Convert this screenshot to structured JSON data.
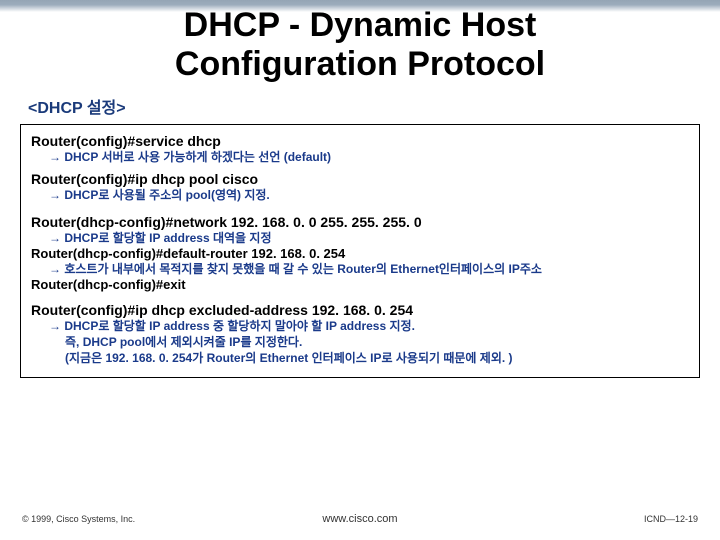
{
  "title_line1": "DHCP - Dynamic Host",
  "title_line2": "Configuration Protocol",
  "section_label": "<DHCP 설정>",
  "content": {
    "cmd1": "Router(config)#service dhcp",
    "desc1": "→ DHCP 서버로 사용 가능하게 하겠다는 선언 (default)",
    "cmd2": "Router(config)#ip dhcp pool cisco",
    "desc2": "→ DHCP로 사용될 주소의 pool(영역) 지정.",
    "cmd3": "Router(dhcp-config)#network 192. 168. 0. 0 255. 255. 255. 0",
    "desc3": "→ DHCP로 할당할 IP address 대역을 지정",
    "cmd4": "Router(dhcp-config)#default-router 192. 168. 0. 254",
    "desc4": "→ 호스트가 내부에서 목적지를 찾지 못했을 때 갈 수 있는 Router의 Ethernet인터페이스의 IP주소",
    "cmd5": "Router(dhcp-config)#exit",
    "cmd6": "Router(config)#ip dhcp excluded-address 192. 168. 0. 254",
    "desc6a": "→ DHCP로 할당할 IP address 중 할당하지 말아야 할 IP address 지정.",
    "desc6b": "즉, DHCP pool에서 제외시켜줄 IP를 지정한다.",
    "desc6c": "(지금은 192. 168. 0. 254가 Router의 Ethernet 인터페이스 IP로 사용되기 때문에  제외. )"
  },
  "footer": {
    "left": "© 1999, Cisco Systems, Inc.",
    "center": "www.cisco.com",
    "right": "ICND—12-19"
  },
  "colors": {
    "title": "#000000",
    "label": "#1a3a7a",
    "desc": "#1a3a8a",
    "border": "#000000",
    "bg": "#ffffff"
  },
  "typography": {
    "title_fontsize": 34,
    "cmd_fontsize": 14,
    "desc_fontsize": 12,
    "footer_fontsize": 9
  }
}
